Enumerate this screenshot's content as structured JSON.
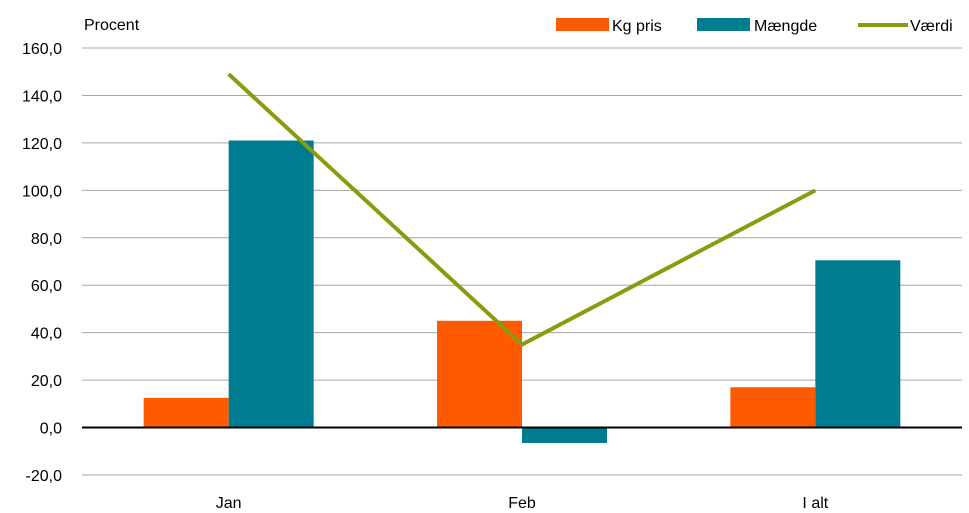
{
  "chart_data": {
    "type": "bar",
    "unit_label": "Procent",
    "categories": [
      "Jan",
      "Feb",
      "I alt"
    ],
    "series": [
      {
        "name": "Kg pris",
        "type": "bar",
        "color": "#FF5A00",
        "values": [
          12.5,
          45.0,
          17.0
        ]
      },
      {
        "name": "Mængde",
        "type": "bar",
        "color": "#007C91",
        "values": [
          121.0,
          -6.5,
          70.5
        ]
      },
      {
        "name": "Værdi",
        "type": "line",
        "color": "#8C9A0F",
        "values": [
          149.0,
          35.0,
          100.0
        ]
      }
    ],
    "ylim": [
      -20,
      160
    ],
    "yticks": [
      -20,
      0,
      20,
      40,
      60,
      80,
      100,
      120,
      140,
      160
    ],
    "ytick_labels": [
      "-20,0",
      "0,0",
      "20,0",
      "40,0",
      "60,0",
      "80,0",
      "100,0",
      "120,0",
      "140,0",
      "160,0"
    ],
    "grid": true,
    "legend_position": "top-right"
  }
}
